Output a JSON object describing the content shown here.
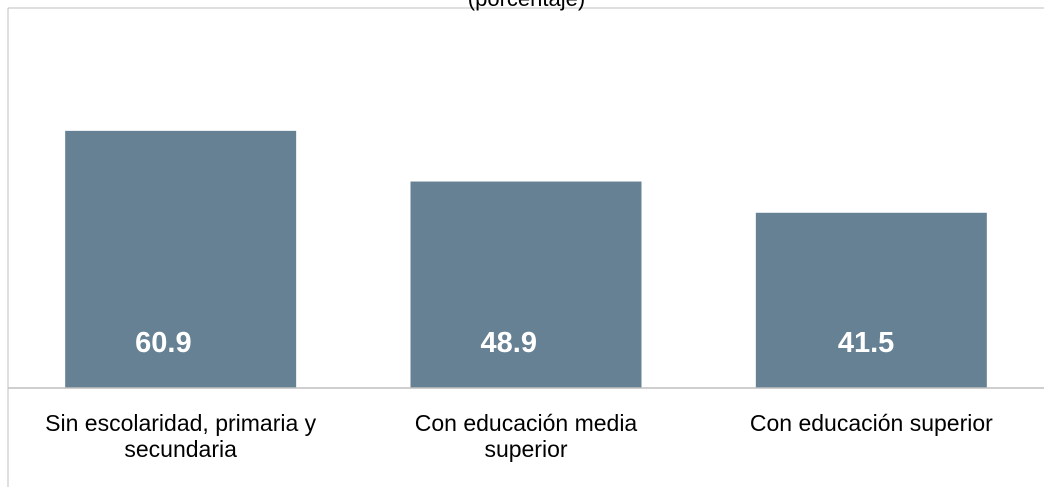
{
  "chart_data": {
    "type": "bar",
    "subtitle": "(porcentaje)",
    "categories": [
      "Sin escolaridad, primaria y secundaria",
      "Con educación media superior",
      "Con educación superior"
    ],
    "category_lines": [
      [
        "Sin escolaridad, primaria y",
        "secundaria"
      ],
      [
        "Con educación media",
        "superior"
      ],
      [
        "Con educación superior"
      ]
    ],
    "values": [
      60.9,
      48.9,
      41.5
    ],
    "value_labels": [
      "60.9",
      "48.9",
      "41.5"
    ],
    "ylim": [
      0,
      90
    ],
    "grid": false,
    "legend": "none",
    "colors": {
      "bar": "#668193",
      "value_label": "#ffffff",
      "axis": "#bfbfbf",
      "text": "#000000"
    }
  }
}
